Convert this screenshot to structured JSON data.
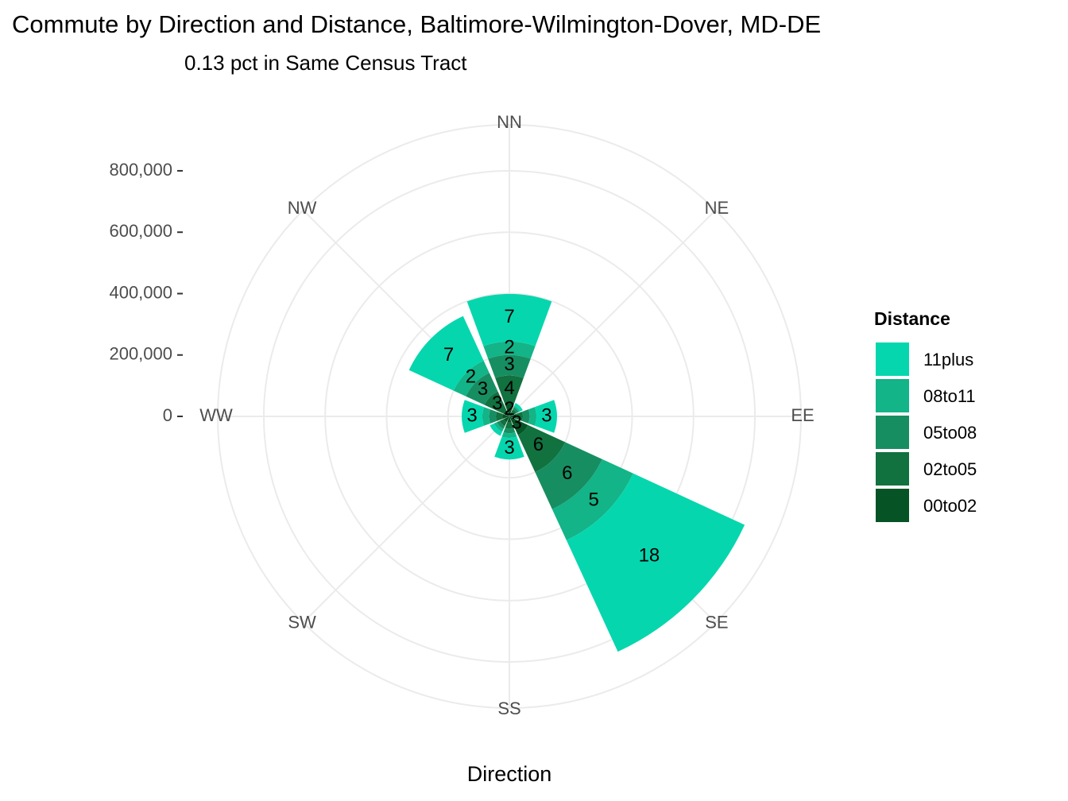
{
  "chart_data": {
    "type": "polar-stacked-bar",
    "title": "Commute by Direction and Distance, Baltimore-Wilmington-Dover, MD-DE",
    "subtitle": "0.13 pct in Same Census Tract",
    "x_label": "Direction",
    "legend_title": "Distance",
    "categories": [
      "NN",
      "NE",
      "EE",
      "SE",
      "SS",
      "SW",
      "WW",
      "NW"
    ],
    "series": [
      {
        "name": "11plus",
        "color": "#06d6ae",
        "values": [
          155000,
          10000,
          67000,
          400000,
          70000,
          15000,
          67000,
          160000
        ],
        "labels": [
          7,
          null,
          3,
          18,
          3,
          null,
          3,
          7
        ]
      },
      {
        "name": "08to11",
        "color": "#13b487",
        "values": [
          44000,
          5000,
          22000,
          111000,
          15000,
          10000,
          22000,
          44000
        ],
        "labels": [
          2,
          null,
          null,
          5,
          null,
          null,
          null,
          2
        ]
      },
      {
        "name": "05to08",
        "color": "#178e62",
        "values": [
          67000,
          8000,
          22000,
          133000,
          15000,
          10000,
          22000,
          67000
        ],
        "labels": [
          3,
          null,
          null,
          6,
          null,
          null,
          null,
          3
        ]
      },
      {
        "name": "02to05",
        "color": "#11713f",
        "values": [
          89000,
          10000,
          22000,
          133000,
          20000,
          15000,
          22000,
          67000
        ],
        "labels": [
          4,
          null,
          null,
          6,
          null,
          null,
          null,
          3
        ]
      },
      {
        "name": "00to02",
        "color": "#065426",
        "values": [
          44000,
          15000,
          22000,
          67000,
          20000,
          20000,
          22000,
          22000
        ],
        "labels": [
          2,
          null,
          null,
          3,
          null,
          null,
          null,
          null
        ]
      }
    ],
    "ylim": [
      0,
      950000
    ],
    "yticks": [
      0,
      {
        "value": 200000,
        "label": "200,000"
      },
      {
        "value": 400000,
        "label": "400,000"
      },
      {
        "value": 600000,
        "label": "600,000"
      },
      {
        "value": 800000,
        "label": "800,000"
      }
    ],
    "grid": true
  }
}
